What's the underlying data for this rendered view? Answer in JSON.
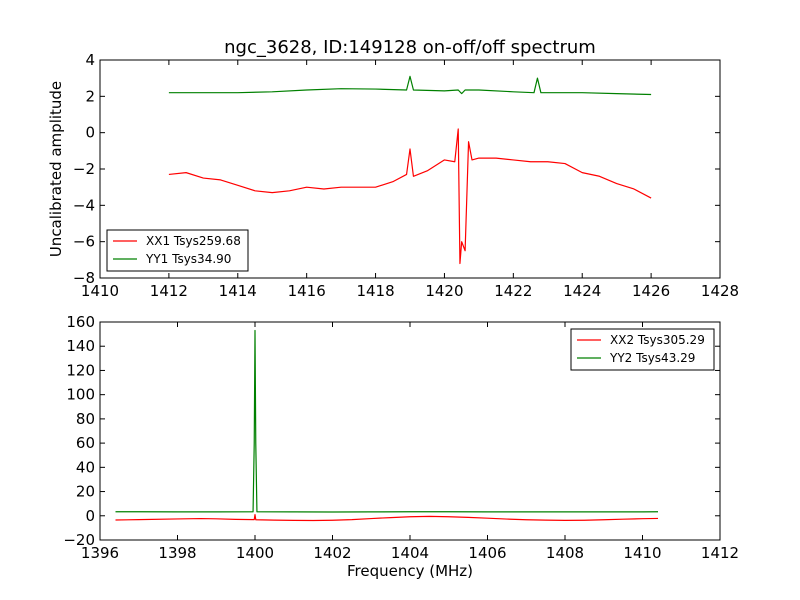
{
  "chart_data": [
    {
      "type": "line",
      "title": "ngc_3628, ID:149128 on-off/off spectrum",
      "xlabel": "",
      "ylabel": "Uncalibrated amplitude",
      "xlim": [
        1410,
        1428
      ],
      "ylim": [
        -8,
        4
      ],
      "xticks": [
        "1410",
        "1412",
        "1414",
        "1416",
        "1418",
        "1420",
        "1422",
        "1424",
        "1426",
        "1428"
      ],
      "yticks": [
        "4",
        "2",
        "0",
        "−2",
        "−4",
        "−6",
        "−8"
      ],
      "legend_position": "lower-left",
      "series": [
        {
          "name": "XX1 Tsys259.68",
          "color": "#ff0000",
          "x": [
            1412.0,
            1412.5,
            1413.0,
            1413.5,
            1414.0,
            1414.5,
            1415.0,
            1415.5,
            1416.0,
            1416.5,
            1417.0,
            1417.5,
            1418.0,
            1418.5,
            1418.9,
            1419.0,
            1419.1,
            1419.5,
            1420.0,
            1420.3,
            1420.4,
            1420.45,
            1420.5,
            1420.6,
            1420.7,
            1420.8,
            1421.0,
            1421.5,
            1422.0,
            1422.5,
            1423.0,
            1423.5,
            1424.0,
            1424.5,
            1425.0,
            1425.5,
            1426.0
          ],
          "y": [
            -2.3,
            -2.2,
            -2.5,
            -2.6,
            -2.9,
            -3.2,
            -3.3,
            -3.2,
            -3.0,
            -3.1,
            -3.0,
            -3.0,
            -3.0,
            -2.7,
            -2.3,
            -0.9,
            -2.4,
            -2.1,
            -1.5,
            -1.6,
            0.2,
            -7.2,
            -6.0,
            -6.5,
            -0.5,
            -1.5,
            -1.4,
            -1.4,
            -1.5,
            -1.6,
            -1.6,
            -1.7,
            -2.2,
            -2.4,
            -2.8,
            -3.1,
            -3.6
          ]
        },
        {
          "name": "YY1 Tsys34.90",
          "color": "#008000",
          "x": [
            1412.0,
            1413.0,
            1414.0,
            1415.0,
            1416.0,
            1417.0,
            1418.0,
            1418.9,
            1419.0,
            1419.1,
            1420.0,
            1420.4,
            1420.5,
            1420.6,
            1421.0,
            1422.0,
            1422.6,
            1422.7,
            1422.8,
            1423.0,
            1424.0,
            1425.0,
            1426.0
          ],
          "y": [
            2.2,
            2.2,
            2.2,
            2.25,
            2.35,
            2.42,
            2.4,
            2.35,
            3.1,
            2.35,
            2.3,
            2.35,
            2.15,
            2.35,
            2.35,
            2.25,
            2.2,
            3.0,
            2.2,
            2.2,
            2.2,
            2.15,
            2.1
          ]
        }
      ]
    },
    {
      "type": "line",
      "title": "",
      "xlabel": "Frequency (MHz)",
      "ylabel": "",
      "xlim": [
        1396,
        1412
      ],
      "ylim": [
        -20,
        160
      ],
      "xticks": [
        "1396",
        "1398",
        "1400",
        "1402",
        "1404",
        "1406",
        "1408",
        "1410",
        "1412"
      ],
      "yticks": [
        "160",
        "140",
        "120",
        "100",
        "80",
        "60",
        "40",
        "20",
        "0",
        "−20"
      ],
      "legend_position": "upper-right",
      "series": [
        {
          "name": "XX2 Tsys305.29",
          "color": "#ff0000",
          "x": [
            1396.4,
            1397.0,
            1398.0,
            1398.6,
            1399.0,
            1399.5,
            1399.98,
            1400.0,
            1400.02,
            1400.5,
            1401.0,
            1401.5,
            1402.0,
            1402.5,
            1403.0,
            1403.5,
            1404.0,
            1404.5,
            1405.0,
            1405.5,
            1406.0,
            1406.5,
            1407.0,
            1407.5,
            1408.0,
            1408.5,
            1409.0,
            1409.5,
            1410.0,
            1410.4
          ],
          "y": [
            -3.5,
            -3.2,
            -2.6,
            -2.3,
            -2.5,
            -3.0,
            -3.2,
            1.0,
            -3.3,
            -3.6,
            -3.8,
            -3.9,
            -3.7,
            -3.2,
            -2.3,
            -1.5,
            -0.8,
            -0.5,
            -0.8,
            -1.3,
            -2.0,
            -2.7,
            -3.3,
            -3.6,
            -3.8,
            -3.7,
            -3.3,
            -2.8,
            -2.4,
            -2.2
          ]
        },
        {
          "name": "YY2 Tsys43.29",
          "color": "#008000",
          "x": [
            1396.4,
            1397.0,
            1398.0,
            1399.0,
            1399.95,
            1399.98,
            1400.0,
            1400.02,
            1400.05,
            1401.0,
            1402.0,
            1403.0,
            1404.0,
            1405.0,
            1406.0,
            1407.0,
            1408.0,
            1409.0,
            1410.0,
            1410.4
          ],
          "y": [
            3.3,
            3.3,
            3.2,
            3.2,
            3.3,
            60.0,
            153.0,
            60.0,
            3.3,
            3.2,
            3.1,
            3.2,
            3.3,
            3.3,
            3.2,
            3.2,
            3.2,
            3.2,
            3.2,
            3.3
          ]
        }
      ]
    }
  ]
}
